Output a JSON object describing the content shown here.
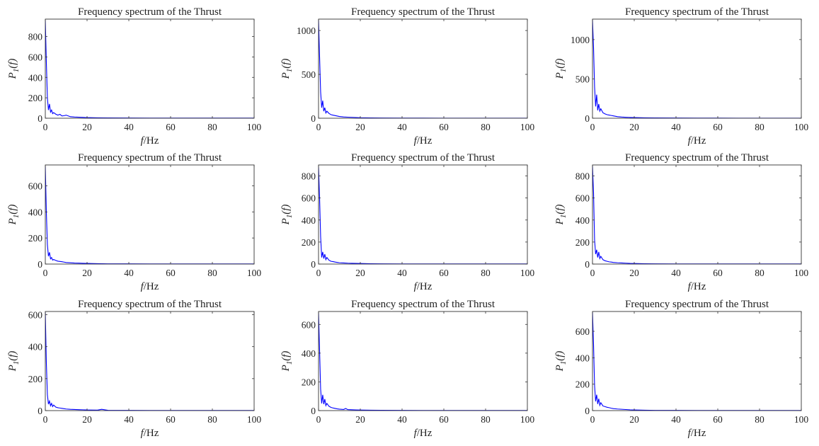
{
  "chart_data": [
    {
      "type": "line",
      "title": "Frequency spectrum of the Thrust",
      "xlabel_var": "f",
      "xlabel_unit": "/Hz",
      "ylabel_var": "P",
      "ylabel_sub": "1",
      "ylabel_arg": "(f)",
      "xlim": [
        0,
        100
      ],
      "ylim": [
        0,
        970
      ],
      "xticks": [
        0,
        20,
        40,
        60,
        80,
        100
      ],
      "yticks": [
        0,
        200,
        400,
        600,
        800
      ],
      "series": [
        {
          "color": "#0000ff",
          "x": [
            0,
            0.5,
            1,
            1.5,
            2,
            2.5,
            3,
            3.5,
            4,
            5,
            6,
            7,
            8,
            9,
            10,
            12,
            14,
            16,
            18,
            20,
            25,
            30,
            40,
            50,
            60,
            70,
            80,
            90,
            100
          ],
          "y": [
            960,
            550,
            200,
            80,
            140,
            60,
            80,
            45,
            55,
            40,
            30,
            38,
            22,
            25,
            30,
            15,
            12,
            10,
            8,
            6,
            4,
            3,
            2,
            1.5,
            1,
            1,
            1,
            1,
            1
          ]
        }
      ]
    },
    {
      "type": "line",
      "title": "Frequency spectrum of the Thrust",
      "xlabel_var": "f",
      "xlabel_unit": "/Hz",
      "ylabel_var": "P",
      "ylabel_sub": "1",
      "ylabel_arg": "(f)",
      "xlim": [
        0,
        100
      ],
      "ylim": [
        0,
        1130
      ],
      "xticks": [
        0,
        20,
        40,
        60,
        80,
        100
      ],
      "yticks": [
        0,
        500,
        1000
      ],
      "series": [
        {
          "color": "#0000ff",
          "x": [
            0,
            0.5,
            1,
            1.5,
            2,
            2.5,
            3,
            3.5,
            4,
            5,
            6,
            7,
            8,
            9,
            10,
            12,
            14,
            16,
            18,
            20,
            25,
            30,
            40,
            50,
            60,
            70,
            80,
            90,
            100
          ],
          "y": [
            1120,
            700,
            300,
            120,
            200,
            80,
            120,
            60,
            80,
            55,
            40,
            35,
            30,
            25,
            20,
            15,
            12,
            10,
            8,
            6,
            4,
            3,
            2,
            1.5,
            1,
            1,
            1,
            1,
            1
          ]
        }
      ]
    },
    {
      "type": "line",
      "title": "Frequency spectrum of the Thrust",
      "xlabel_var": "f",
      "xlabel_unit": "/Hz",
      "ylabel_var": "P",
      "ylabel_sub": "1",
      "ylabel_arg": "(f)",
      "xlim": [
        0,
        100
      ],
      "ylim": [
        0,
        1260
      ],
      "xticks": [
        0,
        20,
        40,
        60,
        80,
        100
      ],
      "yticks": [
        0,
        500,
        1000
      ],
      "series": [
        {
          "color": "#0000ff",
          "x": [
            0,
            0.5,
            1,
            1.5,
            2,
            2.5,
            3,
            3.5,
            4,
            5,
            6,
            7,
            8,
            9,
            10,
            12,
            14,
            16,
            18,
            20,
            25,
            30,
            40,
            50,
            60,
            70,
            80,
            90,
            100
          ],
          "y": [
            1250,
            900,
            400,
            150,
            300,
            100,
            180,
            90,
            120,
            70,
            55,
            45,
            40,
            35,
            30,
            20,
            15,
            12,
            10,
            8,
            5,
            4,
            3,
            2,
            1.5,
            1,
            1,
            1,
            1
          ]
        }
      ]
    },
    {
      "type": "line",
      "title": "Frequency spectrum of the Thrust",
      "xlabel_var": "f",
      "xlabel_unit": "/Hz",
      "ylabel_var": "P",
      "ylabel_sub": "1",
      "ylabel_arg": "(f)",
      "xlim": [
        0,
        100
      ],
      "ylim": [
        0,
        760
      ],
      "xticks": [
        0,
        20,
        40,
        60,
        80,
        100
      ],
      "yticks": [
        0,
        200,
        400,
        600
      ],
      "series": [
        {
          "color": "#0000ff",
          "x": [
            0,
            0.5,
            1,
            1.5,
            2,
            2.5,
            3,
            3.5,
            4,
            5,
            6,
            7,
            8,
            9,
            10,
            12,
            14,
            16,
            18,
            20,
            25,
            30,
            40,
            50,
            60,
            70,
            80,
            90,
            100
          ],
          "y": [
            750,
            400,
            150,
            60,
            90,
            40,
            50,
            30,
            35,
            28,
            22,
            20,
            18,
            15,
            12,
            10,
            8,
            7,
            6,
            5,
            3,
            2,
            1.5,
            1,
            1,
            1,
            1,
            1,
            1
          ]
        }
      ]
    },
    {
      "type": "line",
      "title": "Frequency spectrum of the Thrust",
      "xlabel_var": "f",
      "xlabel_unit": "/Hz",
      "ylabel_var": "P",
      "ylabel_sub": "1",
      "ylabel_arg": "(f)",
      "xlim": [
        0,
        100
      ],
      "ylim": [
        0,
        900
      ],
      "xticks": [
        0,
        20,
        40,
        60,
        80,
        100
      ],
      "yticks": [
        0,
        200,
        400,
        600,
        800
      ],
      "series": [
        {
          "color": "#0000ff",
          "x": [
            0,
            0.5,
            1,
            1.5,
            2,
            2.5,
            3,
            3.5,
            4,
            5,
            6,
            7,
            8,
            9,
            10,
            12,
            14,
            16,
            18,
            20,
            25,
            30,
            40,
            50,
            60,
            70,
            80,
            90,
            100
          ],
          "y": [
            880,
            600,
            250,
            60,
            110,
            50,
            90,
            40,
            60,
            35,
            25,
            22,
            18,
            15,
            12,
            10,
            8,
            7,
            6,
            5,
            3,
            2,
            1.5,
            1,
            1,
            1,
            1,
            1,
            1
          ]
        }
      ]
    },
    {
      "type": "line",
      "title": "Frequency spectrum of the Thrust",
      "xlabel_var": "f",
      "xlabel_unit": "/Hz",
      "ylabel_var": "P",
      "ylabel_sub": "1",
      "ylabel_arg": "(f)",
      "xlim": [
        0,
        100
      ],
      "ylim": [
        0,
        900
      ],
      "xticks": [
        0,
        20,
        40,
        60,
        80,
        100
      ],
      "yticks": [
        0,
        200,
        400,
        600,
        800
      ],
      "series": [
        {
          "color": "#0000ff",
          "x": [
            0,
            0.5,
            1,
            1.5,
            2,
            2.5,
            3,
            3.5,
            4,
            5,
            6,
            7,
            8,
            9,
            10,
            12,
            14,
            16,
            18,
            20,
            25,
            30,
            40,
            50,
            60,
            70,
            80,
            90,
            100
          ],
          "y": [
            890,
            650,
            220,
            90,
            130,
            60,
            110,
            50,
            70,
            40,
            30,
            25,
            20,
            18,
            15,
            12,
            10,
            8,
            6,
            5,
            3,
            2,
            1.5,
            1,
            1,
            1,
            1,
            1,
            1
          ]
        }
      ]
    },
    {
      "type": "line",
      "title": "Frequency spectrum of the Thrust",
      "xlabel_var": "f",
      "xlabel_unit": "/Hz",
      "ylabel_var": "P",
      "ylabel_sub": "1",
      "ylabel_arg": "(f)",
      "xlim": [
        0,
        100
      ],
      "ylim": [
        0,
        620
      ],
      "xticks": [
        0,
        20,
        40,
        60,
        80,
        100
      ],
      "yticks": [
        0,
        200,
        400,
        600
      ],
      "series": [
        {
          "color": "#0000ff",
          "x": [
            0,
            0.5,
            1,
            1.5,
            2,
            2.5,
            3,
            3.5,
            4,
            5,
            6,
            7,
            8,
            9,
            10,
            12,
            14,
            16,
            18,
            20,
            25,
            27,
            30,
            40,
            50,
            60,
            70,
            80,
            90,
            100
          ],
          "y": [
            615,
            300,
            100,
            40,
            60,
            30,
            45,
            25,
            35,
            22,
            18,
            16,
            14,
            12,
            10,
            8,
            7,
            6,
            5,
            4,
            3,
            8,
            2,
            1.5,
            1,
            1,
            1,
            1,
            1,
            1
          ]
        }
      ]
    },
    {
      "type": "line",
      "title": "Frequency spectrum of the Thrust",
      "xlabel_var": "f",
      "xlabel_unit": "/Hz",
      "ylabel_var": "P",
      "ylabel_sub": "1",
      "ylabel_arg": "(f)",
      "xlim": [
        0,
        100
      ],
      "ylim": [
        0,
        690
      ],
      "xticks": [
        0,
        20,
        40,
        60,
        80,
        100
      ],
      "yticks": [
        0,
        200,
        400,
        600
      ],
      "series": [
        {
          "color": "#0000ff",
          "x": [
            0,
            0.5,
            1,
            1.5,
            2,
            2.5,
            3,
            3.5,
            4,
            5,
            6,
            7,
            8,
            9,
            10,
            12,
            13,
            14,
            16,
            18,
            20,
            25,
            30,
            40,
            50,
            60,
            70,
            80,
            90,
            100
          ],
          "y": [
            680,
            420,
            150,
            50,
            110,
            45,
            80,
            35,
            50,
            30,
            22,
            18,
            15,
            12,
            10,
            8,
            15,
            7,
            6,
            5,
            4,
            3,
            2,
            1.5,
            1,
            1,
            1,
            1,
            1,
            1
          ]
        }
      ]
    },
    {
      "type": "line",
      "title": "Frequency spectrum of the Thrust",
      "xlabel_var": "f",
      "xlabel_unit": "/Hz",
      "ylabel_var": "P",
      "ylabel_sub": "1",
      "ylabel_arg": "(f)",
      "xlim": [
        0,
        100
      ],
      "ylim": [
        0,
        750
      ],
      "xticks": [
        0,
        20,
        40,
        60,
        80,
        100
      ],
      "yticks": [
        0,
        200,
        400,
        600
      ],
      "series": [
        {
          "color": "#0000ff",
          "x": [
            0,
            0.5,
            1,
            1.5,
            2,
            2.5,
            3,
            3.5,
            4,
            5,
            6,
            7,
            8,
            9,
            10,
            12,
            14,
            16,
            18,
            20,
            25,
            30,
            40,
            50,
            60,
            70,
            80,
            90,
            100
          ],
          "y": [
            745,
            500,
            190,
            70,
            120,
            50,
            90,
            40,
            60,
            35,
            30,
            25,
            22,
            18,
            15,
            12,
            10,
            8,
            6,
            5,
            3,
            2,
            1.5,
            1,
            1,
            1,
            1,
            1,
            1
          ]
        }
      ]
    }
  ]
}
